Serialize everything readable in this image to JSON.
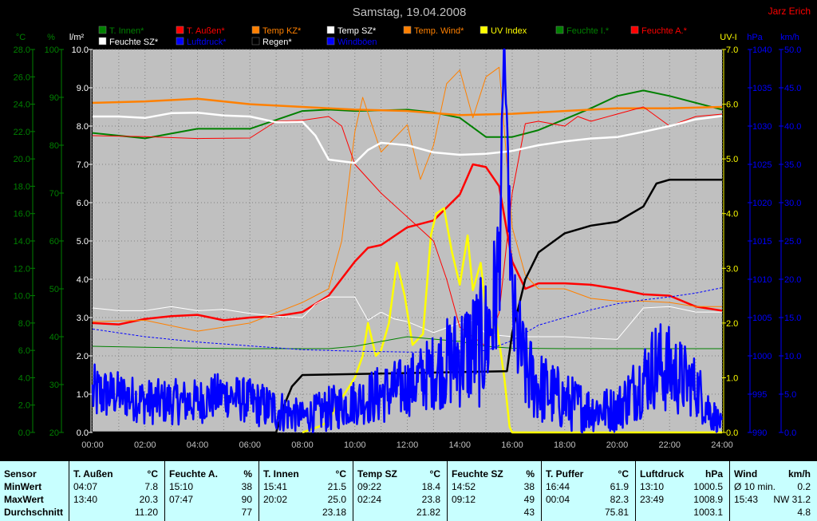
{
  "header": {
    "title": "Samstag, 19.04.2008",
    "author": "Jarz Erich"
  },
  "axes": {
    "temp": {
      "unit": "°C",
      "min": 0,
      "max": 28,
      "step": 2,
      "color": "#008000",
      "decimals": 1
    },
    "hum": {
      "unit": "%",
      "min": 20,
      "max": 100,
      "step": 10,
      "color": "#008000",
      "decimals": 0
    },
    "rain": {
      "unit": "l/m²",
      "min": 0,
      "max": 10,
      "step": 1,
      "color": "#ffffff",
      "decimals": 1
    },
    "uv": {
      "unit": "UV-I",
      "min": 0,
      "max": 7,
      "step": 1,
      "color": "#ffff00",
      "decimals": 1
    },
    "press": {
      "unit": "hPa",
      "min": 990,
      "max": 1040,
      "step": 5,
      "color": "#0000ff",
      "decimals": 0
    },
    "wind": {
      "unit": "km/h",
      "min": 0,
      "max": 50,
      "step": 5,
      "color": "#0000ff",
      "decimals": 1
    },
    "time_labels": [
      "00:00",
      "02:00",
      "04:00",
      "06:00",
      "08:00",
      "10:00",
      "12:00",
      "14:00",
      "16:00",
      "18:00",
      "20:00",
      "22:00",
      "24:00"
    ]
  },
  "legend": [
    {
      "label": "T. Innen*",
      "color": "#008000"
    },
    {
      "label": "T. Außen*",
      "color": "#ff0000"
    },
    {
      "label": "Temp KZ*",
      "color": "#ff8000"
    },
    {
      "label": "Temp SZ*",
      "color": "#ffffff"
    },
    {
      "label": "Temp. Wind*",
      "color": "#ff8000"
    },
    {
      "label": "UV Index",
      "color": "#ffff00"
    },
    {
      "label": "Feuchte I.*",
      "color": "#008000"
    },
    {
      "label": "Feuchte A.*",
      "color": "#ff0000"
    },
    {
      "label": "Feuchte SZ*",
      "color": "#ffffff"
    },
    {
      "label": "Luftdruck*",
      "color": "#0000ff"
    },
    {
      "label": "Regen*",
      "color": "#000000"
    },
    {
      "label": "Windböen",
      "color": "#0000ff"
    }
  ],
  "chart_data": {
    "type": "line",
    "title": "Samstag, 19.04.2008",
    "x_unit": "hours",
    "xlim": [
      0,
      24
    ],
    "grid": true,
    "series": [
      {
        "name": "T. Innen*",
        "axis": "temp",
        "color": "#008000",
        "width": 2,
        "x": [
          0,
          2,
          4,
          6,
          8,
          9,
          10,
          12,
          13,
          14,
          15,
          16,
          17,
          18,
          19,
          20,
          21,
          22,
          23,
          24
        ],
        "y": [
          21.9,
          21.5,
          22.2,
          22.2,
          23.5,
          23.6,
          23.5,
          23.6,
          23.4,
          23.0,
          21.6,
          21.6,
          22.1,
          22.9,
          23.7,
          24.6,
          25.0,
          24.6,
          24.1,
          23.6
        ]
      },
      {
        "name": "T. Außen*",
        "axis": "temp",
        "color": "#ff0000",
        "width": 2.5,
        "x": [
          0,
          1,
          2,
          3,
          4,
          5,
          6,
          7,
          8,
          9,
          10,
          10.5,
          11,
          12,
          13,
          14,
          14.5,
          15,
          15.5,
          16,
          16.5,
          17,
          18,
          19,
          20,
          21,
          22,
          23,
          24
        ],
        "y": [
          8.0,
          7.9,
          8.3,
          8.5,
          8.6,
          8.2,
          8.4,
          8.5,
          8.8,
          10.0,
          12.5,
          13.5,
          13.7,
          15.0,
          15.5,
          17.4,
          19.6,
          19.4,
          18.0,
          12.5,
          10.5,
          10.9,
          10.9,
          10.8,
          10.5,
          10.1,
          10.0,
          9.2,
          8.9
        ]
      },
      {
        "name": "Temp KZ*",
        "axis": "temp",
        "color": "#ff8000",
        "width": 1,
        "x": [
          0,
          2,
          4,
          6,
          8,
          9,
          9.5,
          10,
          10.3,
          11,
          12,
          12.5,
          13,
          13.5,
          14,
          14.5,
          15,
          15.5,
          16,
          16.5,
          17,
          18,
          19,
          20,
          21,
          22,
          23,
          24
        ],
        "y": [
          8.1,
          8.2,
          7.4,
          8.0,
          9.5,
          10.5,
          14.0,
          22.0,
          24.5,
          20.5,
          22.5,
          18.5,
          21.0,
          25.5,
          26.5,
          23.0,
          26.0,
          26.7,
          15.0,
          11.5,
          10.5,
          10.5,
          9.8,
          9.6,
          9.6,
          9.5,
          9.2,
          9.2
        ]
      },
      {
        "name": "Temp SZ*",
        "axis": "temp",
        "color": "#ffffff",
        "width": 1,
        "x": [
          0,
          1,
          2,
          3,
          4,
          5,
          6,
          7,
          8,
          8.5,
          9,
          10,
          10.5,
          11,
          11.5,
          12,
          13,
          14,
          14.5,
          15,
          16,
          17,
          18,
          19,
          20,
          21,
          22,
          23,
          24
        ],
        "y": [
          9.1,
          8.9,
          8.9,
          9.2,
          8.9,
          9.0,
          8.7,
          8.5,
          8.4,
          9.4,
          9.9,
          9.9,
          8.2,
          8.8,
          8.3,
          8.1,
          7.3,
          8.0,
          8.2,
          7.2,
          7.0,
          7.0,
          7.0,
          6.9,
          6.8,
          9.1,
          9.2,
          8.8,
          8.8
        ]
      },
      {
        "name": "Temp. Wind*",
        "axis": "temp",
        "color": "#ff8000",
        "width": 2.5,
        "x": [
          0,
          2,
          4,
          6,
          8,
          10,
          12,
          14,
          16,
          18,
          20,
          22,
          24
        ],
        "y": [
          24.1,
          24.2,
          24.4,
          24.0,
          23.8,
          23.6,
          23.5,
          23.2,
          23.3,
          23.5,
          23.7,
          23.7,
          23.8
        ]
      },
      {
        "name": "UV Index",
        "axis": "uv",
        "color": "#ffff00",
        "width": 2.5,
        "x": [
          8,
          8.6,
          9,
          9.3,
          9.6,
          10,
          10.3,
          10.5,
          10.8,
          11,
          11.3,
          11.6,
          11.9,
          12.2,
          12.6,
          12.9,
          13.1,
          13.4,
          13.7,
          14,
          14.3,
          14.5,
          14.8,
          15.1,
          15.4,
          15.7,
          15.9,
          16,
          24
        ],
        "y": [
          0,
          0.1,
          0.2,
          0.5,
          0.7,
          1.0,
          1.4,
          2.0,
          1.4,
          1.5,
          2.0,
          3.1,
          2.5,
          1.6,
          1.8,
          3.6,
          4.0,
          4.1,
          3.3,
          2.7,
          3.6,
          2.6,
          3.1,
          1.8,
          2.0,
          1.0,
          0.1,
          0,
          0
        ]
      },
      {
        "name": "Feuchte I.*",
        "axis": "hum",
        "color": "#008000",
        "width": 1,
        "x": [
          0,
          2,
          4,
          6,
          8,
          9,
          10,
          11,
          12,
          13,
          14,
          15,
          16,
          18,
          20,
          22,
          24
        ],
        "y": [
          38.0,
          37.8,
          37.6,
          37.5,
          37.5,
          37.5,
          38.0,
          39.0,
          40.0,
          39.5,
          39.0,
          38.0,
          37.6,
          37.5,
          37.5,
          37.5,
          37.5
        ]
      },
      {
        "name": "Feuchte A.*",
        "axis": "hum",
        "color": "#ff0000",
        "width": 1,
        "x": [
          0,
          2,
          4,
          6,
          7,
          8,
          9,
          9.5,
          10,
          11,
          12,
          13,
          13.5,
          14,
          14.5,
          15,
          15.5,
          16,
          16.5,
          17,
          18,
          18.5,
          19,
          20,
          21,
          22,
          23,
          24
        ],
        "y": [
          82.0,
          81.8,
          81.4,
          81.5,
          85.0,
          85.2,
          86.0,
          84.0,
          76.0,
          70.0,
          65.0,
          60.0,
          52.0,
          42.0,
          40.0,
          38.0,
          45.0,
          70.0,
          84.5,
          85.0,
          84.0,
          86.0,
          85.0,
          86.5,
          88.0,
          84.0,
          86.0,
          86.5
        ]
      },
      {
        "name": "Feuchte SZ*",
        "axis": "hum",
        "color": "#ffffff",
        "width": 2.5,
        "x": [
          0,
          1,
          2,
          3,
          4,
          5,
          6,
          7,
          8,
          8.5,
          9,
          10,
          10.5,
          11,
          12,
          13,
          14,
          15,
          16,
          17,
          18,
          19,
          20,
          21,
          22,
          23,
          24
        ],
        "y": [
          86.0,
          86.0,
          85.7,
          86.7,
          86.8,
          86.2,
          86.0,
          84.8,
          84.9,
          82.0,
          77.0,
          76.3,
          79.0,
          80.5,
          80.0,
          78.5,
          78.0,
          78.2,
          78.8,
          80.0,
          80.8,
          81.4,
          81.7,
          82.8,
          84.0,
          85.4,
          86.1
        ]
      },
      {
        "name": "Luftdruck*",
        "axis": "press",
        "color": "#0000ff",
        "width": 1,
        "dashed": true,
        "x": [
          0,
          2,
          4,
          6,
          8,
          10,
          12,
          14,
          15,
          16,
          17,
          18,
          19,
          20,
          21,
          22,
          23,
          24
        ],
        "y": [
          1003.5,
          1002.5,
          1001.8,
          1001.3,
          1000.8,
          1000.6,
          1000.5,
          1000.5,
          1000.7,
          1002.0,
          1004.0,
          1005.0,
          1006.0,
          1006.8,
          1007.3,
          1007.7,
          1008.2,
          1008.9
        ]
      },
      {
        "name": "Regen*",
        "axis": "rain",
        "color": "#000000",
        "width": 2.5,
        "x": [
          0,
          7,
          7.3,
          7.6,
          8,
          15.8,
          16,
          16.5,
          17,
          18,
          19,
          20,
          21,
          21.5,
          22,
          22.5,
          23,
          24
        ],
        "y": [
          0,
          0,
          0.7,
          1.2,
          1.5,
          1.6,
          2.6,
          4.0,
          4.7,
          5.2,
          5.4,
          5.5,
          5.9,
          6.5,
          6.6,
          6.6,
          6.6,
          6.6
        ]
      },
      {
        "name": "Windböen",
        "axis": "wind",
        "color": "#0000ff",
        "width": 2.5,
        "style": "noise",
        "x": [
          0,
          1,
          2,
          3,
          4,
          5,
          6,
          7,
          8,
          9,
          10,
          11,
          12,
          13,
          13.5,
          14,
          14.5,
          15,
          15.3,
          15.5,
          15.7,
          16,
          16.5,
          17,
          18,
          19,
          20,
          21,
          21.5,
          22,
          22.5,
          23,
          23.5,
          24
        ],
        "y": [
          5,
          5,
          4,
          4,
          4,
          5,
          4,
          3,
          2,
          3,
          4,
          5,
          6,
          8,
          9,
          10,
          11,
          12,
          16,
          22,
          50,
          15,
          8,
          6,
          4,
          3,
          3,
          7,
          9,
          8,
          7,
          6,
          3,
          1
        ],
        "spread": [
          4,
          3,
          3,
          3,
          3,
          3,
          3,
          3,
          2,
          3,
          3,
          4,
          4,
          5,
          6,
          7,
          8,
          9,
          10,
          10,
          0,
          8,
          6,
          5,
          4,
          3,
          3,
          5,
          6,
          6,
          5,
          4,
          3,
          1
        ]
      }
    ]
  },
  "summary": [
    {
      "title": "Sensor",
      "unit": "",
      "rows": [
        [
          "MinWert",
          ""
        ],
        [
          "MaxWert",
          ""
        ],
        [
          "Durchschnitt",
          ""
        ]
      ]
    },
    {
      "title": "T. Außen",
      "unit": "°C",
      "rows": [
        [
          "04:07",
          "7.8"
        ],
        [
          "13:40",
          "20.3"
        ],
        [
          "",
          "11.20"
        ]
      ]
    },
    {
      "title": "Feuchte A.",
      "unit": "%",
      "rows": [
        [
          "15:10",
          "38"
        ],
        [
          "07:47",
          "90"
        ],
        [
          "",
          "77"
        ]
      ]
    },
    {
      "title": "T. Innen",
      "unit": "°C",
      "rows": [
        [
          "15:41",
          "21.5"
        ],
        [
          "20:02",
          "25.0"
        ],
        [
          "",
          "23.18"
        ]
      ]
    },
    {
      "title": "Temp SZ",
      "unit": "°C",
      "rows": [
        [
          "09:22",
          "18.4"
        ],
        [
          "02:24",
          "23.8"
        ],
        [
          "",
          "21.82"
        ]
      ]
    },
    {
      "title": "Feuchte SZ",
      "unit": "%",
      "rows": [
        [
          "14:52",
          "38"
        ],
        [
          "09:12",
          "49"
        ],
        [
          "",
          "43"
        ]
      ]
    },
    {
      "title": "T. Puffer",
      "unit": "°C",
      "rows": [
        [
          "16:44",
          "61.9"
        ],
        [
          "00:04",
          "82.3"
        ],
        [
          "",
          "75.81"
        ]
      ]
    },
    {
      "title": "Luftdruck",
      "unit": "hPa",
      "rows": [
        [
          "13:10",
          "1000.5"
        ],
        [
          "23:49",
          "1008.9"
        ],
        [
          "",
          "1003.1"
        ]
      ]
    },
    {
      "title": "Wind",
      "unit": "km/h",
      "rows": [
        [
          "Ø 10 min.",
          "0.2"
        ],
        [
          "15:43",
          "NW 31.2"
        ],
        [
          "",
          "4.8"
        ]
      ]
    }
  ]
}
